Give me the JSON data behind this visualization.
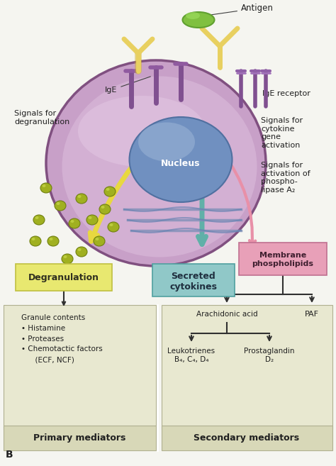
{
  "bg_color": "#f5f5f0",
  "cell_outer_color": "#c8a0c8",
  "cell_inner_color": "#d4b0d4",
  "cell_highlight": "#e8c8e8",
  "nucleus_color": "#7090c0",
  "nucleus_highlight": "#90b0d8",
  "er_color": "#a0b8d8",
  "granule_color": "#a0b020",
  "degran_box_color": "#e8e870",
  "cytokine_box_color": "#90c8c8",
  "membrane_box_color": "#e8a0b8",
  "bottom_box_color": "#e8e8d0",
  "bottom_header_color": "#d8d8b8",
  "arrow_color": "#303030",
  "text_color": "#202020",
  "ige_color": "#8060a0",
  "antibody_color": "#e8d060",
  "antigen_color": "#70b840",
  "signal_arrow_yellow": "#e8d840",
  "signal_arrow_teal": "#60b0a8",
  "signal_arrow_pink": "#e890a8",
  "title_b": "B",
  "label_antigen": "Antigen",
  "label_ige": "IgE",
  "label_ige_receptor": "IgE receptor",
  "label_nucleus": "Nucleus",
  "label_signals_degran": "Signals for\ndegranulation",
  "label_signals_cytokine": "Signals for\ncytokine\ngene\nactivation",
  "label_signals_phospho": "Signals for\nactivation of\nphospho-\nlipase A₂",
  "label_degranulation": "Degranulation",
  "label_secreted": "Secreted\ncytokines",
  "label_membrane": "Membrane\nphospholipids",
  "label_arachidonic": "Arachidonic acid",
  "label_paf": "PAF",
  "label_leukotrienes": "Leukotrienes\nB₄, C₄, D₄",
  "label_prostaglandin": "Prostaglandin\nD₂",
  "label_granule_contents": "Granule contents\n• Histamine\n• Proteases\n• Chemotactic factors\n      (ECF, NCF)",
  "label_primary": "Primary mediators",
  "label_secondary": "Secondary mediators"
}
